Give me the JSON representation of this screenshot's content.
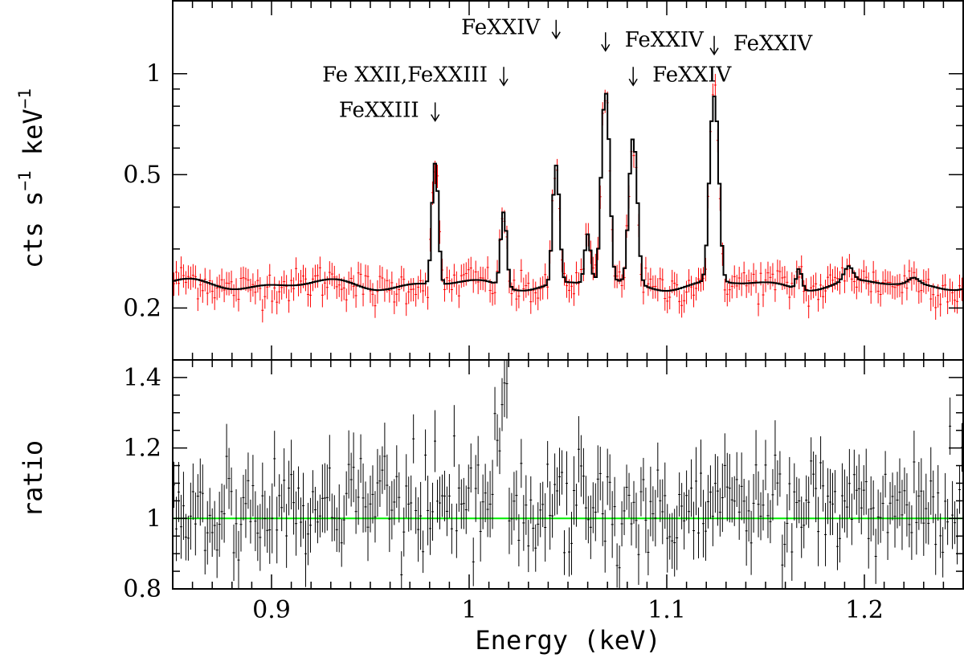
{
  "chart_data": [
    {
      "type": "line",
      "panel": "top",
      "title": "",
      "xlabel": "",
      "ylabel": "cts s",
      "ylabel_exp1": "−1",
      "ylabel_mid": " keV",
      "ylabel_exp2": "−1",
      "yscale": "log",
      "xlim": [
        0.85,
        1.25
      ],
      "ylim": [
        0.14,
        1.65
      ],
      "y_ticks": [
        0.2,
        0.5,
        1
      ],
      "y_tick_labels": [
        "0.2",
        "0.5",
        "1"
      ],
      "baseline": 0.235,
      "lines": [
        {
          "energy": 0.9828,
          "peak": 0.54,
          "sigma": 0.0014
        },
        {
          "energy": 1.0175,
          "peak": 0.39,
          "sigma": 0.0014
        },
        {
          "energy": 1.044,
          "peak": 0.53,
          "sigma": 0.0015
        },
        {
          "energy": 1.06,
          "peak": 0.33,
          "sigma": 0.0014
        },
        {
          "energy": 1.069,
          "peak": 0.88,
          "sigma": 0.0017
        },
        {
          "energy": 1.083,
          "peak": 0.64,
          "sigma": 0.0018
        },
        {
          "energy": 1.124,
          "peak": 0.85,
          "sigma": 0.0019
        },
        {
          "energy": 1.167,
          "peak": 0.27,
          "sigma": 0.0013
        },
        {
          "energy": 1.192,
          "peak": 0.26,
          "sigma": 0.0022
        },
        {
          "energy": 1.225,
          "peak": 0.245,
          "sigma": 0.0025
        }
      ],
      "series": [
        {
          "name": "data",
          "color": "#ff0000",
          "style": "crosses"
        },
        {
          "name": "model",
          "color": "#000000",
          "style": "step"
        }
      ],
      "annotations": [
        {
          "text": "FeXXIII",
          "arrow_energy": 0.9828,
          "arrow_value": 0.76,
          "side": "left"
        },
        {
          "text": "Fe XXII,FeXXIII",
          "arrow_energy": 1.0175,
          "arrow_value": 0.97,
          "side": "left"
        },
        {
          "text": "FeXXIV",
          "arrow_energy": 1.044,
          "arrow_value": 1.34,
          "side": "left"
        },
        {
          "text": "FeXXIV",
          "arrow_energy": 1.069,
          "arrow_value": 1.23,
          "side": "right"
        },
        {
          "text": "FeXXIV",
          "arrow_energy": 1.083,
          "arrow_value": 0.97,
          "side": "right"
        },
        {
          "text": "FeXXIV",
          "arrow_energy": 1.124,
          "arrow_value": 1.2,
          "side": "right"
        }
      ]
    },
    {
      "type": "scatter",
      "panel": "bottom",
      "title": "",
      "xlabel": "Energy (keV)",
      "ylabel": "ratio",
      "xlim": [
        0.85,
        1.25
      ],
      "ylim": [
        0.8,
        1.45
      ],
      "x_ticks": [
        0.9,
        1.0,
        1.1,
        1.2
      ],
      "x_tick_labels": [
        "0.9",
        "1",
        "1.1",
        "1.2"
      ],
      "y_ticks": [
        0.8,
        1.0,
        1.2,
        1.4
      ],
      "y_tick_labels": [
        "0.8",
        "1",
        "1.2",
        "1.4"
      ],
      "reference_line": {
        "y": 1.0,
        "color": "#00ee00"
      },
      "series": [
        {
          "name": "ratio",
          "color": "#000000",
          "style": "crosses",
          "mean": 1.03,
          "scatter": 0.07,
          "bins": 330
        }
      ]
    }
  ]
}
